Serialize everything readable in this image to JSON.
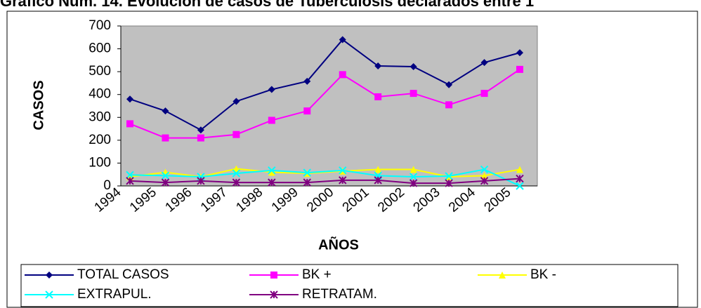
{
  "chart_data": {
    "type": "line",
    "title": "Gráfico Núm. 14. Evolución de casos de Tuberculosis declarados entre 1",
    "xlabel": "AÑOS",
    "ylabel": "CASOS",
    "categories": [
      "1994",
      "1995",
      "1996",
      "1997",
      "1998",
      "1999",
      "2000",
      "2001",
      "2002",
      "2003",
      "2004",
      "2005"
    ],
    "ylim": [
      0,
      700
    ],
    "yticks": [
      0,
      100,
      200,
      300,
      400,
      500,
      600,
      700
    ],
    "grid": false,
    "plot_background": "#c0c0c0",
    "series": [
      {
        "name": "TOTAL CASOS",
        "color": "#000080",
        "marker": "diamond",
        "values": [
          380,
          328,
          245,
          370,
          422,
          458,
          640,
          525,
          522,
          443,
          540,
          583
        ]
      },
      {
        "name": "BK +",
        "color": "#ff00ff",
        "marker": "square",
        "values": [
          272,
          210,
          210,
          225,
          287,
          328,
          487,
          390,
          405,
          355,
          405,
          510
        ]
      },
      {
        "name": "BK -",
        "color": "#ffff00",
        "marker": "triangle",
        "values": [
          40,
          60,
          40,
          75,
          60,
          55,
          65,
          72,
          72,
          40,
          45,
          72
        ]
      },
      {
        "name": "EXTRAPUL.",
        "color": "#00ffff",
        "marker": "x",
        "values": [
          48,
          45,
          40,
          55,
          68,
          58,
          68,
          45,
          40,
          43,
          72,
          0
        ]
      },
      {
        "name": "RETRATAM.",
        "color": "#800080",
        "marker": "star",
        "values": [
          22,
          15,
          22,
          15,
          15,
          15,
          25,
          25,
          12,
          12,
          22,
          32
        ]
      }
    ]
  }
}
